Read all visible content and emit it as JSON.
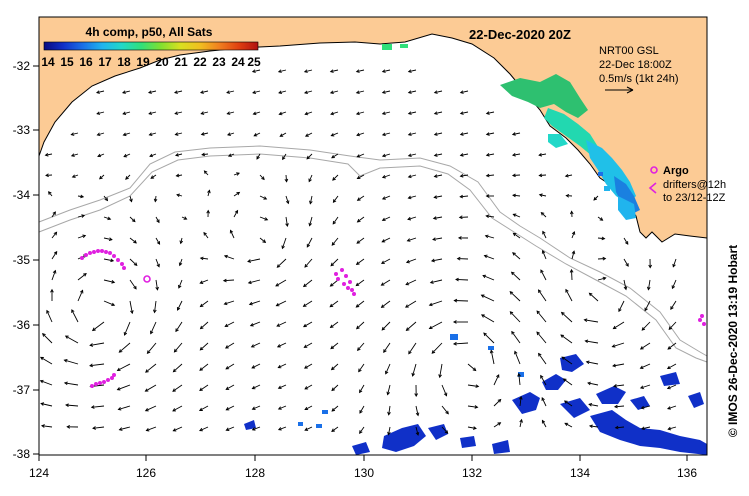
{
  "title": "22-Dec-2020 20Z",
  "colorbar": {
    "label": "4h comp, p50, All Sats",
    "ticks": [
      "14",
      "15",
      "16",
      "17",
      "18",
      "19",
      "20",
      "21",
      "22",
      "23",
      "24",
      "25"
    ],
    "stops": [
      "#0a0a80",
      "#1030c8",
      "#1a70e8",
      "#20b4ee",
      "#22d8c8",
      "#30e07a",
      "#80e030",
      "#d8e020",
      "#f0c020",
      "#f08020",
      "#e04010",
      "#b01010"
    ]
  },
  "current_legend": {
    "source": "NRT00 GSL",
    "time": "22-Dec 18:00Z",
    "scale": "0.5m/s (1kt 24h)"
  },
  "argo_legend": {
    "label": "Argo",
    "drifters": "drifters@12h",
    "period": "to 23/12-12Z"
  },
  "credit": "© IMOS 26-Dec-2020 13:19 Hobart",
  "axes": {
    "x_ticks": [
      "124",
      "126",
      "128",
      "130",
      "132",
      "134",
      "136"
    ],
    "y_ticks": [
      "-32",
      "-33",
      "-34",
      "-35",
      "-36",
      "-37",
      "-38"
    ]
  },
  "colors": {
    "land": "#fccb95",
    "sea": "#ffffff",
    "isobath": "#a8a8a8",
    "argo": "#e020e0",
    "arrow": "#000000"
  }
}
